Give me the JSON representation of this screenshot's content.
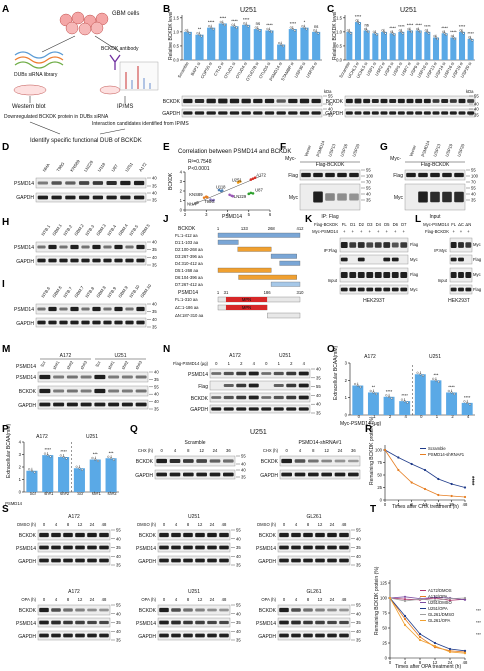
{
  "panel_letters": [
    "A",
    "B",
    "C",
    "D",
    "E",
    "F",
    "G",
    "H",
    "I",
    "J",
    "K",
    "L",
    "M",
    "N",
    "O",
    "P",
    "Q",
    "R",
    "S",
    "T"
  ],
  "panelA": {
    "cells": "GBM cells",
    "left_lib": "DUBs siRNA library",
    "right_ab": "BCKDK antibody",
    "wb": "Western blot",
    "ipms": "IP/MS",
    "down": "Downregulated BCKDK protein in DUBs siRNA",
    "cand": "Interaction candidates identified from IP/MS",
    "identify": "Identify specific functional DUB of BCKDK"
  },
  "panelB": {
    "title": "U251",
    "ylabel": "Relative BCKDK level",
    "yticks": [
      "0.0",
      "0.5",
      "1.0",
      "1.5"
    ],
    "categories": [
      "Scramble",
      "BAP1 si",
      "COPS5 si",
      "CYLD si",
      "OTUD1 si",
      "OTUD4 si",
      "OTUD7B si",
      "OTUD5 si",
      "PSMD14 si",
      "STAMBP si",
      "USP30 si",
      "USP34 si"
    ],
    "red_categories": [
      "PSMD14 si"
    ],
    "values": [
      1.0,
      0.9,
      1.15,
      1.3,
      1.2,
      1.25,
      1.1,
      1.05,
      0.55,
      1.1,
      1.15,
      1.0
    ],
    "sig": [
      "",
      "**",
      "****",
      "****",
      "****",
      "****",
      "ns",
      "****",
      "",
      "****",
      "*",
      "ns"
    ],
    "blot_labels": [
      "BCKDK",
      "GAPDH"
    ],
    "kda_label": "kDa",
    "kda": [
      [
        "55",
        "40"
      ],
      [
        "40",
        "35"
      ]
    ]
  },
  "panelC": {
    "title": "U251",
    "ylabel": "Relative BCKDK level",
    "yticks": [
      "0.0",
      "0.5",
      "1.0",
      "1.5"
    ],
    "categories": [
      "Scramble",
      "UCHL3 si",
      "UCHL5 si",
      "USP1 si",
      "USP2 si",
      "USP3 si",
      "USP5 si",
      "USP7 si",
      "USP9 si",
      "USP10 si",
      "USP13 si",
      "USP14 si",
      "USP16 si",
      "USP19 si",
      "USP20 si"
    ],
    "red_categories": [
      "USP13 si",
      "USP16 si",
      "USP20 si"
    ],
    "values": [
      1.0,
      1.35,
      1.05,
      0.95,
      1.0,
      0.95,
      1.0,
      1.05,
      1.05,
      1.0,
      0.8,
      0.95,
      0.8,
      1.0,
      0.75
    ],
    "sig": [
      "",
      "****",
      "ns",
      "",
      "",
      "****",
      "****",
      "****",
      "****",
      "****",
      "",
      "****",
      "****",
      "****",
      "****"
    ],
    "blot_labels": [
      "BCKDK",
      "GAPDH"
    ],
    "kda_label": "kDa",
    "kda": [
      [
        "55",
        "40"
      ],
      [
        "40",
        "35"
      ]
    ]
  },
  "panelD": {
    "lanes": [
      "NHA",
      "T98G",
      "KNS89",
      "LN229",
      "U118",
      "U87",
      "U251",
      "A172"
    ],
    "blot_labels": [
      "PSMD14",
      "GAPDH"
    ],
    "kda": [
      [
        "40",
        "35"
      ],
      [
        "40",
        "35"
      ]
    ]
  },
  "panelE": {
    "title": "Correlation between PSMD14 and BCKDK",
    "stats": [
      "R²=0.7548",
      "P<0.0001"
    ],
    "xlabel": "PSMD14",
    "ylabel": "BCKDK",
    "xticks": [
      "2",
      "3",
      "4",
      "5",
      "6"
    ],
    "yticks": [
      "0",
      "1",
      "2",
      "3",
      "4"
    ],
    "cell_lines": [
      "A172",
      "U251",
      "U87",
      "U118",
      "LN229",
      "KNS89",
      "T98G",
      "NHA"
    ],
    "points": [
      {
        "x": 5.3,
        "y": 3.4,
        "c": "#d73027"
      },
      {
        "x": 5.1,
        "y": 3.2,
        "c": "#d73027"
      },
      {
        "x": 5.2,
        "y": 3.3,
        "c": "#d73027"
      },
      {
        "x": 4.6,
        "y": 3.0,
        "c": "#f39c12"
      },
      {
        "x": 4.5,
        "y": 2.9,
        "c": "#f39c12"
      },
      {
        "x": 4.55,
        "y": 3.0,
        "c": "#f39c12"
      },
      {
        "x": 5.1,
        "y": 1.8,
        "c": "#2ca02c"
      },
      {
        "x": 5.0,
        "y": 1.7,
        "c": "#2ca02c"
      },
      {
        "x": 5.2,
        "y": 1.75,
        "c": "#2ca02c"
      },
      {
        "x": 3.7,
        "y": 2.0,
        "c": "#4a7fb5"
      },
      {
        "x": 3.6,
        "y": 2.1,
        "c": "#4a7fb5"
      },
      {
        "x": 3.75,
        "y": 2.05,
        "c": "#4a7fb5"
      },
      {
        "x": 4.2,
        "y": 1.5,
        "c": "#9b59b6"
      },
      {
        "x": 4.1,
        "y": 1.6,
        "c": "#9b59b6"
      },
      {
        "x": 4.25,
        "y": 1.45,
        "c": "#9b59b6"
      },
      {
        "x": 3.0,
        "y": 1.4,
        "c": "#e67e22"
      },
      {
        "x": 2.9,
        "y": 1.3,
        "c": "#e67e22"
      },
      {
        "x": 3.05,
        "y": 1.35,
        "c": "#e67e22"
      },
      {
        "x": 3.3,
        "y": 1.0,
        "c": "#8e7cc3"
      },
      {
        "x": 3.2,
        "y": 1.1,
        "c": "#8e7cc3"
      },
      {
        "x": 3.35,
        "y": 1.05,
        "c": "#8e7cc3"
      },
      {
        "x": 2.6,
        "y": 0.8,
        "c": "#7f7f7f"
      },
      {
        "x": 2.5,
        "y": 0.7,
        "c": "#7f7f7f"
      },
      {
        "x": 2.55,
        "y": 0.75,
        "c": "#7f7f7f"
      }
    ]
  },
  "panelF": {
    "tag_label": "Myc-",
    "lanes": [
      "Vector",
      "PSMD14",
      "USP13",
      "USP16",
      "USP20"
    ],
    "header": "Flag-BCKDK",
    "blot_labels": [
      "Flag",
      "Myc"
    ],
    "bottom": "IP: Flag",
    "kda": [
      "55",
      "100",
      "70",
      "55",
      "40",
      "35"
    ]
  },
  "panelG": {
    "tag_label": "Myc-",
    "lanes": [
      "Vector",
      "PSMD14",
      "USP13",
      "USP19",
      "USP20"
    ],
    "header": "Flag-BCKDK",
    "bottom": "Input",
    "kda": [
      "55",
      "100",
      "70",
      "55",
      "40",
      "35"
    ]
  },
  "panelH": {
    "lanes": [
      "NTB.1",
      "GBM.1",
      "NTB.2",
      "GBM.2",
      "NTB.3",
      "GBM.3",
      "NTB.4",
      "GBM.4",
      "NTB.5",
      "GBM.5"
    ],
    "blot_labels": [
      "PSMD14",
      "GAPDH"
    ],
    "kda": [
      "40",
      "35",
      "40",
      "35"
    ]
  },
  "panelI": {
    "lanes": [
      "NTB.6",
      "GBM.6",
      "NTB.7",
      "GBM.7",
      "NTB.8",
      "GBM.8",
      "NTB.9",
      "GBM.9",
      "NTB.10",
      "GBM.10"
    ],
    "blot_labels": [
      "PSMD14",
      "GAPDH"
    ],
    "kda": [
      "40",
      "35",
      "40",
      "35"
    ]
  },
  "panelJ": {
    "bckdk_label": "BCKDK",
    "bckdk_ticks": [
      "1",
      "133",
      "268",
      "412"
    ],
    "bckdk_rows": [
      "FL:1-412 aa",
      "D1:1-103 aa",
      "D2:100-268 aa",
      "D3:267-396 aa",
      "D4:310-412 aa",
      "D5:1-268 aa",
      "D6:104-396 aa",
      "D7:267-412 aa"
    ],
    "psmd_label": "PSMD14",
    "psmd_ticks": [
      "1",
      "31",
      "186",
      "310"
    ],
    "psmd_rows": [
      "FL:1-310 aa",
      "ΔC:1-186 aa",
      "ΔN:187-310 aa"
    ],
    "mpn": "MPN"
  },
  "panelK": {
    "rows": [
      "Flag-BCKDK",
      "Myc-PSMD14"
    ],
    "lanes": [
      "FL",
      "D1",
      "D2",
      "D3",
      "D4",
      "D5",
      "D6",
      "D7"
    ],
    "groups": [
      "IP:Flag",
      "Input"
    ],
    "blot_labels": [
      "Flag",
      "Myc",
      "Flag",
      "Myc"
    ],
    "cell": "HEK293T"
  },
  "panelL": {
    "rows": [
      "Myc-PSMD14",
      "Flag-BCKDK"
    ],
    "lanes": [
      "FL",
      "ΔC",
      "ΔN"
    ],
    "groups": [
      "IP:Myc",
      "Input"
    ],
    "blot_labels": [
      "Myc",
      "Flag",
      "Myc",
      "Flag"
    ],
    "cell": "HEK293T"
  },
  "panelM": {
    "groups": [
      "A172",
      "U251"
    ],
    "row_label": "PSMD14",
    "lanes": [
      "Scr",
      "sh#1",
      "sh#2",
      "sh#3",
      "Scr",
      "sh#1",
      "sh#2",
      "sh#3"
    ],
    "blot_labels": [
      "PSMD14",
      "BCKDK",
      "GAPDH"
    ],
    "kda": [
      "40",
      "35",
      "55",
      "40",
      "40",
      "35"
    ]
  },
  "panelN": {
    "groups": [
      "A172",
      "U251"
    ],
    "row_label": "Flag-PSMD14 (μg)",
    "doses": [
      "0",
      "1",
      "2",
      "4",
      "0",
      "1",
      "2",
      "4"
    ],
    "blot_labels": [
      "PSMD14",
      "Flag",
      "BCKDK",
      "GAPDH"
    ],
    "kda": [
      "40",
      "35",
      "55",
      "40",
      "40",
      "35"
    ]
  },
  "panelO": {
    "groups": [
      "A172",
      "U251"
    ],
    "ylabel": "Extracellular BCAA(mM)",
    "yticks": [
      "0",
      "1",
      "2",
      "3"
    ],
    "categories": [
      "0",
      "1",
      "2",
      "4",
      "0",
      "1",
      "2",
      "4"
    ],
    "xlabel": "Myc-PSMD14 (μg)",
    "values": [
      1.7,
      1.3,
      1.05,
      0.8,
      2.35,
      2.0,
      1.3,
      0.7
    ],
    "sig": [
      "",
      "**",
      "****",
      "****",
      "",
      "***",
      "****",
      "****"
    ]
  },
  "panelP": {
    "groups": [
      "A172",
      "U251"
    ],
    "ylabel": "Extracellular BCAA(mM)",
    "yticks": [
      "0",
      "1",
      "2",
      "3",
      "4"
    ],
    "categories": [
      "Scr",
      "sh#1",
      "sh#2",
      "Scr",
      "sh#1",
      "sh#2"
    ],
    "row_label": "PSMD14",
    "values": [
      1.7,
      2.95,
      2.8,
      1.9,
      2.6,
      2.7
    ],
    "sig": [
      "",
      "****",
      "****",
      "",
      "***",
      "***"
    ]
  },
  "panelQ": {
    "title": "U251",
    "groups": [
      "Scramble",
      "PSMD14-shRNA#1"
    ],
    "chx_label": "CHX (h)",
    "times": [
      "0",
      "4",
      "8",
      "12",
      "24",
      "36",
      "0",
      "4",
      "8",
      "12",
      "24",
      "36"
    ],
    "blot_labels": [
      "BCKDK",
      "GAPDH",
      "BCKDK",
      "GAPDH"
    ],
    "kda": [
      "55",
      "40",
      "40",
      "35"
    ]
  },
  "panelR": {
    "ylabel": "Remaining BCKDK protein (%)",
    "xlabel": "Times after CHX treatment (h)",
    "yticks": [
      "0",
      "25",
      "50",
      "75",
      "100"
    ],
    "xticks": [
      "0",
      "4",
      "8",
      "12",
      "24",
      "36",
      "48"
    ],
    "legend": [
      "Scramble",
      "PSMD14-shRNA#1"
    ],
    "sig": "****",
    "series": [
      {
        "name": "Scramble",
        "color": "#1f3b8a",
        "x": [
          0,
          4,
          8,
          12,
          24,
          36,
          48
        ],
        "y": [
          100,
          85,
          72,
          60,
          42,
          32,
          25
        ]
      },
      {
        "name": "PSMD14-shRNA#1",
        "color": "#e67e22",
        "x": [
          0,
          4,
          8,
          12,
          24,
          36,
          48
        ],
        "y": [
          100,
          60,
          35,
          22,
          10,
          8,
          6
        ]
      }
    ]
  },
  "panelS": {
    "rows": [
      {
        "treatment": "DMSO (h)",
        "cells": [
          "A172",
          "U251",
          "GL261"
        ]
      },
      {
        "treatment": "OPA (h)",
        "cells": [
          "A172",
          "U251",
          "GL261"
        ]
      }
    ],
    "times": [
      "0",
      "4",
      "8",
      "12",
      "24",
      "48"
    ],
    "blot_labels": [
      "BCKDK",
      "PSMD14",
      "GAPDH"
    ],
    "kda": [
      "55",
      "40",
      "35",
      "40",
      "35"
    ]
  },
  "panelT": {
    "ylabel": "Remaining BCKDK protein (%)",
    "xlabel": "Times after OPA treatment (h)",
    "yticks": [
      "0",
      "25",
      "50",
      "75",
      "100",
      "125"
    ],
    "xticks": [
      "0",
      "4",
      "8",
      "12",
      "24",
      "48"
    ],
    "legend": [
      "A172/DMOS",
      "A172/OPA",
      "U251/DMSO",
      "U251/OPA",
      "GL261/DMSO",
      "GL261/OPA"
    ],
    "sig": [
      "***",
      "***",
      "***"
    ],
    "series": [
      {
        "name": "A172/DMOS",
        "color": "#b0386e",
        "x": [
          0,
          4,
          8,
          12,
          24,
          48
        ],
        "y": [
          100,
          98,
          97,
          100,
          96,
          98
        ]
      },
      {
        "name": "A172/OPA",
        "color": "#e67e22",
        "x": [
          0,
          4,
          8,
          12,
          24,
          48
        ],
        "y": [
          100,
          65,
          35,
          18,
          12,
          10
        ]
      },
      {
        "name": "U251/DMSO",
        "color": "#7b4ea3",
        "x": [
          0,
          4,
          8,
          12,
          24,
          48
        ],
        "y": [
          100,
          102,
          99,
          101,
          100,
          97
        ]
      },
      {
        "name": "U251/OPA",
        "color": "#1f3b8a",
        "x": [
          0,
          4,
          8,
          12,
          24,
          48
        ],
        "y": [
          100,
          70,
          40,
          25,
          15,
          12
        ]
      },
      {
        "name": "GL261/DMSO",
        "color": "#9e9e9e",
        "x": [
          0,
          4,
          8,
          12,
          24,
          48
        ],
        "y": [
          100,
          95,
          98,
          96,
          99,
          100
        ]
      },
      {
        "name": "GL261/OPA",
        "color": "#f0a030",
        "x": [
          0,
          4,
          8,
          12,
          24,
          48
        ],
        "y": [
          100,
          55,
          30,
          20,
          10,
          8
        ]
      }
    ]
  }
}
